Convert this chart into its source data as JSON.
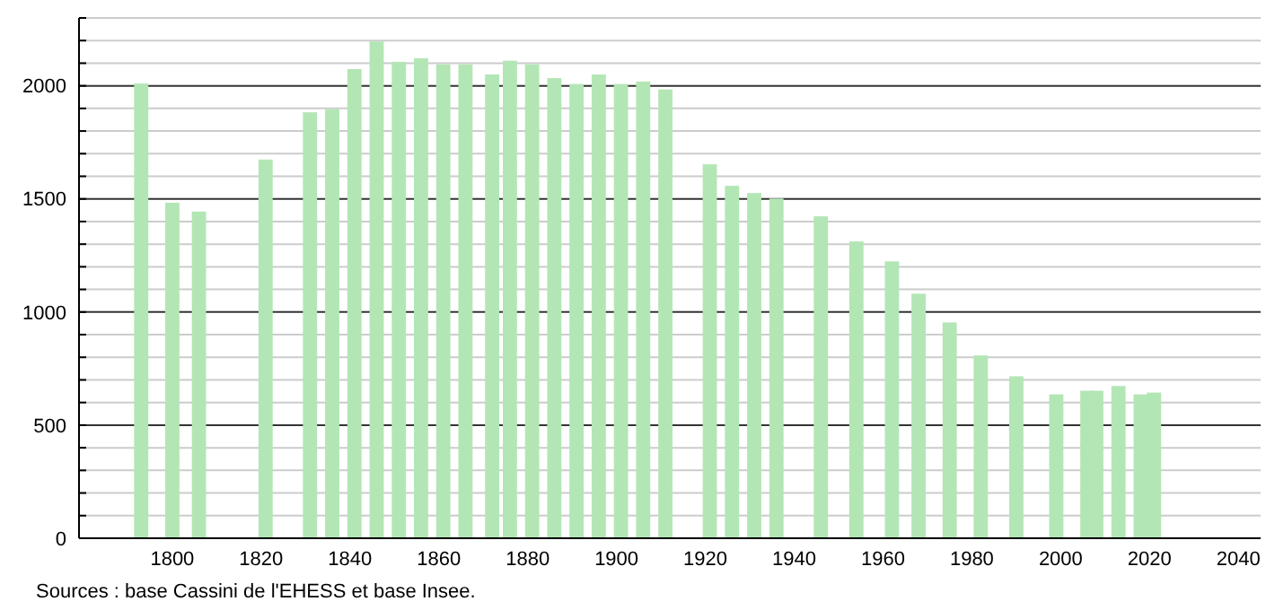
{
  "chart_data": {
    "type": "bar",
    "x": [
      1793,
      1800,
      1806,
      1821,
      1831,
      1836,
      1841,
      1846,
      1851,
      1856,
      1861,
      1866,
      1872,
      1876,
      1881,
      1886,
      1891,
      1896,
      1901,
      1906,
      1911,
      1921,
      1926,
      1931,
      1936,
      1946,
      1954,
      1962,
      1968,
      1975,
      1982,
      1990,
      1999,
      2006,
      2008,
      2013,
      2018,
      2021
    ],
    "values": [
      2010,
      1483,
      1444,
      1674,
      1883,
      1897,
      2074,
      2196,
      2106,
      2122,
      2095,
      2095,
      2050,
      2111,
      2095,
      2034,
      2008,
      2050,
      2008,
      2019,
      1984,
      1653,
      1558,
      1526,
      1502,
      1423,
      1312,
      1224,
      1081,
      954,
      808,
      716,
      636,
      652,
      652,
      673,
      636,
      644
    ],
    "color": "#b3e6b5",
    "xlim": [
      1779,
      2045
    ],
    "xticks": [
      1800,
      1820,
      1840,
      1860,
      1880,
      1900,
      1920,
      1940,
      1960,
      1980,
      2000,
      2020,
      2040
    ],
    "ylim": [
      0,
      2300
    ],
    "yticks": [
      0,
      {
        "value": 100,
        "label": null
      },
      {
        "value": 200,
        "label": null
      },
      {
        "value": 300,
        "label": null
      },
      {
        "value": 400,
        "label": null
      },
      500,
      {
        "value": 600,
        "label": null
      },
      {
        "value": 700,
        "label": null
      },
      {
        "value": 800,
        "label": null
      },
      {
        "value": 900,
        "label": null
      },
      1000,
      {
        "value": 1100,
        "label": null
      },
      {
        "value": 1200,
        "label": null
      },
      {
        "value": 1300,
        "label": null
      },
      {
        "value": 1400,
        "label": null
      },
      1500,
      {
        "value": 1600,
        "label": null
      },
      {
        "value": 1700,
        "label": null
      },
      {
        "value": 1800,
        "label": null
      },
      {
        "value": 1900,
        "label": null
      },
      2000,
      {
        "value": 2100,
        "label": null
      },
      {
        "value": 2200,
        "label": null
      },
      {
        "value": 2300,
        "label": null
      }
    ],
    "grid": "y",
    "annotations": [
      "Sources : base Cassini de l'EHESS et base Insee."
    ]
  }
}
